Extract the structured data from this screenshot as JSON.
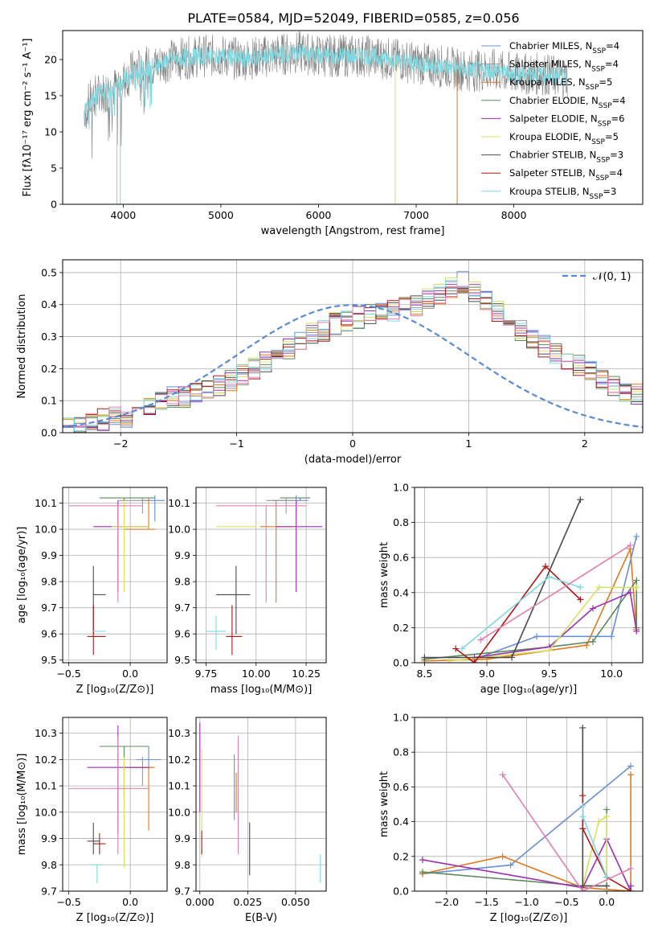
{
  "figure_title": "PLATE=0584, MJD=52049, FIBERID=0585, z=0.056",
  "colors": {
    "models": [
      "#6a8fd8",
      "#9a9a9a",
      "#e07820",
      "#5c8a5c",
      "#9b30b0",
      "#d8e060",
      "#4a4a4a",
      "#b01818",
      "#80d8e0"
    ],
    "top_panel_lines": [
      "#808080",
      "#80d8e0"
    ],
    "hist_pink": "#e080b0",
    "gaussian": "#5a8ad6"
  },
  "chart_data": [
    {
      "id": "spectrum",
      "type": "line",
      "title": "PLATE=0584, MJD=52049, FIBERID=0585, z=0.056",
      "xlabel": "wavelength [Angstrom, rest frame]",
      "ylabel": "Flux [fλ10⁻¹⁷ erg cm⁻² s⁻¹ A⁻¹]",
      "xlim": [
        3380,
        9320
      ],
      "ylim": [
        0,
        24
      ],
      "xticks": [
        4000,
        5000,
        6000,
        7000,
        8000
      ],
      "yticks": [
        0,
        5,
        10,
        15,
        20
      ],
      "grid": false,
      "legend_position": "top-right",
      "legend": [
        "Chabrier MILES, N_SSP=4",
        "Salpeter MILES, N_SSP=4",
        "Kroupa MILES, N_SSP=5",
        "Chabrier ELODIE, N_SSP=4",
        "Salpeter ELODIE, N_SSP=6",
        "Kroupa ELODIE, N_SSP=5",
        "Chabrier STELIB, N_SSP=3",
        "Salpeter STELIB, N_SSP=4",
        "Kroupa STELIB, N_SSP=3"
      ],
      "legend_html": [
        "Chabrier MILES, N<tspan baseline-shift=\"sub\" font-size=\"9\">SSP</tspan>=4",
        "Salpeter MILES, N<tspan baseline-shift=\"sub\" font-size=\"9\">SSP</tspan>=4",
        "Kroupa MILES, N<tspan baseline-shift=\"sub\" font-size=\"9\">SSP</tspan>=5",
        "Chabrier ELODIE, N<tspan baseline-shift=\"sub\" font-size=\"9\">SSP</tspan>=4",
        "Salpeter ELODIE, N<tspan baseline-shift=\"sub\" font-size=\"9\">SSP</tspan>=6",
        "Kroupa ELODIE, N<tspan baseline-shift=\"sub\" font-size=\"9\">SSP</tspan>=5",
        "Chabrier STELIB, N<tspan baseline-shift=\"sub\" font-size=\"9\">SSP</tspan>=3",
        "Salpeter STELIB, N<tspan baseline-shift=\"sub\" font-size=\"9\">SSP</tspan>=4",
        "Kroupa STELIB, N<tspan baseline-shift=\"sub\" font-size=\"9\">SSP</tspan>=3"
      ],
      "continuum": {
        "x": [
          3600,
          3700,
          3800,
          3900,
          4000,
          4100,
          4300,
          4500,
          4800,
          5000,
          5200,
          5500,
          5800,
          6000,
          6300,
          6500,
          6800,
          7000,
          7300,
          7500,
          7800,
          8000,
          8300,
          8500
        ],
        "y": [
          13.0,
          15.0,
          15.5,
          16.0,
          17.0,
          18.5,
          19.0,
          20.0,
          20.5,
          20.5,
          20.0,
          20.5,
          21.0,
          20.5,
          20.5,
          20.5,
          20.0,
          19.5,
          19.0,
          18.5,
          18.5,
          18.0,
          18.0,
          17.5
        ]
      },
      "notable_features": [
        {
          "x": 3935,
          "y": 0.0
        },
        {
          "x": 3970,
          "y": 0.0
        },
        {
          "x": 6785,
          "y": 0.0
        },
        {
          "x": 7420,
          "y": 0.0
        }
      ]
    },
    {
      "id": "residual-histogram",
      "type": "line",
      "xlabel": "(data-model)/error",
      "ylabel": "Normed distribution",
      "xlim": [
        -2.5,
        2.5
      ],
      "ylim": [
        0,
        0.54
      ],
      "xticks": [
        -2,
        -1,
        0,
        1,
        2
      ],
      "yticks": [
        0.0,
        0.1,
        0.2,
        0.3,
        0.4,
        0.5
      ],
      "grid": true,
      "legend_position": "top-right",
      "gaussian_label": "𝒩(0, 1)",
      "bin_width": 0.1,
      "bin_start": -2.5,
      "envelope": [
        0.02,
        0.02,
        0.03,
        0.04,
        0.05,
        0.05,
        0.06,
        0.08,
        0.1,
        0.11,
        0.11,
        0.12,
        0.13,
        0.15,
        0.16,
        0.18,
        0.2,
        0.22,
        0.24,
        0.26,
        0.29,
        0.31,
        0.32,
        0.34,
        0.35,
        0.36,
        0.37,
        0.37,
        0.38,
        0.39,
        0.4,
        0.42,
        0.43,
        0.45,
        0.47,
        0.44,
        0.41,
        0.38,
        0.36,
        0.32,
        0.29,
        0.27,
        0.25,
        0.23,
        0.21,
        0.19,
        0.17,
        0.15,
        0.13,
        0.12,
        0.1,
        0.09,
        0.08,
        0.07,
        0.06,
        0.05,
        0.04,
        0.04,
        0.03,
        0.03,
        0.02,
        0.02,
        0.02
      ]
    },
    {
      "id": "age-vs-metallicity",
      "type": "scatter",
      "xlabel": "Z [log₁₀(Z/Z⊙)]",
      "ylabel": "age  [log₁₀(age/yr)]",
      "xlim": [
        -0.55,
        0.3
      ],
      "ylim": [
        9.49,
        10.16
      ],
      "xticks": [
        -0.5,
        0.0
      ],
      "yticks": [
        9.5,
        9.6,
        9.7,
        9.8,
        9.9,
        10.0,
        10.1
      ],
      "grid": true,
      "points": [
        {
          "x": 0.2,
          "y": 10.11,
          "xerr": [
            0.12,
            0.08
          ],
          "yerr": [
            0.08,
            0.02
          ],
          "c": 0
        },
        {
          "x": 0.1,
          "y": 10.11,
          "xerr": [
            0.2,
            0.05
          ],
          "yerr": [
            0.05,
            0.01
          ],
          "c": 1
        },
        {
          "x": 0.15,
          "y": 10.0,
          "xerr": [
            0.2,
            0.05
          ],
          "yerr": [
            0.0,
            0.12
          ],
          "c": 2
        },
        {
          "x": -0.05,
          "y": 10.12,
          "xerr": [
            0.2,
            0.25
          ],
          "yerr": [
            0.01,
            0.0
          ],
          "c": 3
        },
        {
          "x": -0.1,
          "y": 10.01,
          "xerr": [
            0.2,
            0.25
          ],
          "yerr": [
            0.25,
            0.1
          ],
          "c": 4
        },
        {
          "x": -0.05,
          "y": 10.01,
          "xerr": [
            0.1,
            0.2
          ],
          "yerr": [
            0.25,
            0.1
          ],
          "c": 5
        },
        {
          "x": -0.3,
          "y": 9.75,
          "xerr": [
            0.0,
            0.1
          ],
          "yerr": [
            0.15,
            0.11
          ],
          "c": 6
        },
        {
          "x": -0.3,
          "y": 9.59,
          "xerr": [
            0.05,
            0.1
          ],
          "yerr": [
            0.07,
            0.12
          ],
          "c": 7
        },
        {
          "x": -0.25,
          "y": 9.61,
          "xerr": [
            0.05,
            0.05
          ],
          "yerr": [
            0.0,
            0.0
          ],
          "c": 8
        },
        {
          "x": -0.1,
          "y": 10.09,
          "xerr": [
            0.4,
            0.2
          ],
          "yerr": [
            0.37,
            0.0
          ],
          "c": "pink"
        }
      ]
    },
    {
      "id": "age-vs-mass",
      "type": "scatter",
      "xlabel": "mass [log₁₀(M/M⊙)]",
      "ylabel": "",
      "xlim": [
        9.7,
        10.35
      ],
      "ylim": [
        9.49,
        10.16
      ],
      "xticks": [
        9.75,
        10.0,
        10.25
      ],
      "yticks": [
        9.5,
        9.6,
        9.7,
        9.8,
        9.9,
        10.0,
        10.1
      ],
      "grid": true,
      "points": [
        {
          "x": 10.2,
          "y": 10.11,
          "xerr": [
            0.12,
            0.06
          ],
          "yerr": [
            0.05,
            0.02
          ],
          "c": 0
        },
        {
          "x": 10.15,
          "y": 10.11,
          "xerr": [
            0.1,
            0.06
          ],
          "yerr": [
            0.05,
            0.01
          ],
          "c": 1
        },
        {
          "x": 10.1,
          "y": 10.01,
          "xerr": [
            0.08,
            0.08
          ],
          "yerr": [
            0.29,
            0.1
          ],
          "c": 2
        },
        {
          "x": 10.22,
          "y": 10.12,
          "xerr": [
            0.1,
            0.05
          ],
          "yerr": [
            0.01,
            0.0
          ],
          "c": 3
        },
        {
          "x": 10.2,
          "y": 10.01,
          "xerr": [
            0.1,
            0.13
          ],
          "yerr": [
            0.25,
            0.1
          ],
          "c": 4
        },
        {
          "x": 9.9,
          "y": 10.01,
          "xerr": [
            0.1,
            0.1
          ],
          "yerr": [
            0.0,
            0.0
          ],
          "c": 5
        },
        {
          "x": 9.9,
          "y": 9.75,
          "xerr": [
            0.1,
            0.07
          ],
          "yerr": [
            0.15,
            0.11
          ],
          "c": 6
        },
        {
          "x": 9.88,
          "y": 9.59,
          "xerr": [
            0.03,
            0.05
          ],
          "yerr": [
            0.07,
            0.12
          ],
          "c": 7
        },
        {
          "x": 9.8,
          "y": 9.61,
          "xerr": [
            0.05,
            0.05
          ],
          "yerr": [
            0.07,
            0.06
          ],
          "c": 8
        },
        {
          "x": 10.05,
          "y": 10.09,
          "xerr": [
            0.25,
            0.2
          ],
          "yerr": [
            0.37,
            0.0
          ],
          "c": "pink"
        }
      ]
    },
    {
      "id": "mass-weight-vs-age",
      "type": "line",
      "xlabel": "age  [log₁₀(age/yr)]",
      "ylabel": "mass weight",
      "xlim": [
        8.42,
        10.25
      ],
      "ylim": [
        0,
        1.0
      ],
      "xticks": [
        8.5,
        9.0,
        9.5,
        10.0
      ],
      "yticks": [
        0.0,
        0.2,
        0.4,
        0.6,
        0.8,
        1.0
      ],
      "grid": true,
      "series": [
        {
          "c": 0,
          "x": [
            8.9,
            9.4,
            10.0,
            10.2
          ],
          "y": [
            0.02,
            0.15,
            0.15,
            0.72
          ]
        },
        {
          "c": 2,
          "x": [
            8.5,
            9.0,
            9.8,
            10.15,
            10.2
          ],
          "y": [
            0.01,
            0.02,
            0.1,
            0.65,
            0.19
          ]
        },
        {
          "c": 3,
          "x": [
            8.5,
            9.5,
            9.85,
            10.2,
            10.2
          ],
          "y": [
            0.02,
            0.09,
            0.12,
            0.47,
            0.2
          ]
        },
        {
          "c": 4,
          "x": [
            8.9,
            9.5,
            9.85,
            10.15,
            10.2
          ],
          "y": [
            0.03,
            0.09,
            0.31,
            0.4,
            0.18
          ]
        },
        {
          "c": 5,
          "x": [
            8.7,
            9.5,
            9.9,
            10.2
          ],
          "y": [
            0.01,
            0.07,
            0.43,
            0.43
          ]
        },
        {
          "c": 6,
          "x": [
            8.5,
            9.2,
            9.75
          ],
          "y": [
            0.03,
            0.03,
            0.93
          ]
        },
        {
          "c": 7,
          "x": [
            8.75,
            8.9,
            9.47,
            9.75
          ],
          "y": [
            0.08,
            0.0,
            0.55,
            0.36
          ]
        },
        {
          "c": 8,
          "x": [
            8.8,
            9.5,
            9.75
          ],
          "y": [
            0.08,
            0.49,
            0.43
          ]
        },
        {
          "c": "pink",
          "x": [
            8.95,
            10.15
          ],
          "y": [
            0.13,
            0.67
          ]
        }
      ]
    },
    {
      "id": "mass-vs-metallicity",
      "type": "scatter",
      "xlabel": "Z [log₁₀(Z/Z⊙)]",
      "ylabel": "mass [log₁₀(M/M⊙)]",
      "xlim": [
        -0.55,
        0.3
      ],
      "ylim": [
        9.7,
        10.36
      ],
      "xticks": [
        -0.5,
        0.0
      ],
      "yticks": [
        9.7,
        9.8,
        9.9,
        10.0,
        10.1,
        10.2,
        10.3
      ],
      "grid": true,
      "points": [
        {
          "x": 0.15,
          "y": 10.2,
          "xerr": [
            0.1,
            0.1
          ],
          "yerr": [
            0.05,
            0.05
          ],
          "c": 0
        },
        {
          "x": 0.1,
          "y": 10.17,
          "xerr": [
            0.15,
            0.08
          ],
          "yerr": [
            0.07,
            0.04
          ],
          "c": 1
        },
        {
          "x": 0.15,
          "y": 10.17,
          "xerr": [
            0.15,
            0.05
          ],
          "yerr": [
            0.24,
            0.0
          ],
          "c": 2
        },
        {
          "x": -0.05,
          "y": 10.25,
          "xerr": [
            0.2,
            0.2
          ],
          "yerr": [
            0.2,
            0.0
          ],
          "c": 3
        },
        {
          "x": -0.1,
          "y": 10.17,
          "xerr": [
            0.25,
            0.25
          ],
          "yerr": [
            0.25,
            0.16
          ],
          "c": 4
        },
        {
          "x": -0.05,
          "y": 10.09,
          "xerr": [
            0.1,
            0.15
          ],
          "yerr": [
            0.3,
            0.12
          ],
          "c": 5
        },
        {
          "x": -0.3,
          "y": 9.89,
          "xerr": [
            0.05,
            0.05
          ],
          "yerr": [
            0.05,
            0.07
          ],
          "c": 6
        },
        {
          "x": -0.25,
          "y": 9.88,
          "xerr": [
            0.05,
            0.05
          ],
          "yerr": [
            0.04,
            0.04
          ],
          "c": 7
        },
        {
          "x": -0.27,
          "y": 9.8,
          "xerr": [
            0.05,
            0.05
          ],
          "yerr": [
            0.07,
            0.0
          ],
          "c": 8
        },
        {
          "x": -0.1,
          "y": 10.09,
          "xerr": [
            0.4,
            0.25
          ],
          "yerr": [
            0.25,
            0.2
          ],
          "c": "pink"
        }
      ]
    },
    {
      "id": "mass-vs-extinction",
      "type": "scatter",
      "xlabel": "E(B-V)",
      "ylabel": "",
      "xlim": [
        -0.002,
        0.066
      ],
      "ylim": [
        9.7,
        10.36
      ],
      "xticks": [
        0.0,
        0.025,
        0.05
      ],
      "yticks": [
        9.7,
        9.8,
        9.9,
        10.0,
        10.1,
        10.2,
        10.3
      ],
      "grid": true,
      "points": [
        {
          "x": 0.018,
          "y": 10.17,
          "xerr": [
            0,
            0
          ],
          "yerr": [
            0.2,
            0.05
          ],
          "c": 0
        },
        {
          "x": 0.019,
          "y": 10.1,
          "xerr": [
            0,
            0
          ],
          "yerr": [
            0.1,
            0.05
          ],
          "c": 2
        },
        {
          "x": 0.0,
          "y": 10.1,
          "xerr": [
            0,
            0
          ],
          "yerr": [
            0.1,
            0.24
          ],
          "c": 4
        },
        {
          "x": 0.001,
          "y": 10.06,
          "xerr": [
            0,
            0
          ],
          "yerr": [
            0.23,
            0.18
          ],
          "c": 5
        },
        {
          "x": 0.026,
          "y": 9.89,
          "xerr": [
            0,
            0
          ],
          "yerr": [
            0.13,
            0.07
          ],
          "c": 6
        },
        {
          "x": 0.001,
          "y": 9.88,
          "xerr": [
            0,
            0
          ],
          "yerr": [
            0.04,
            0.05
          ],
          "c": 7
        },
        {
          "x": 0.063,
          "y": 9.8,
          "xerr": [
            0,
            0
          ],
          "yerr": [
            0.07,
            0.04
          ],
          "c": 8
        },
        {
          "x": 0.02,
          "y": 10.09,
          "xerr": [
            0,
            0
          ],
          "yerr": [
            0.25,
            0.2
          ],
          "c": "pink"
        }
      ]
    },
    {
      "id": "mass-weight-vs-metallicity",
      "type": "line",
      "xlabel": "Z [log₁₀(Z/Z⊙)]",
      "ylabel": "mass weight",
      "xlim": [
        -2.4,
        0.45
      ],
      "ylim": [
        0,
        1.0
      ],
      "xticks": [
        -2.0,
        -1.5,
        -1.0,
        -0.5,
        0.0
      ],
      "yticks": [
        0.0,
        0.2,
        0.4,
        0.6,
        0.8,
        1.0
      ],
      "grid": true,
      "series": [
        {
          "c": 0,
          "x": [
            -2.3,
            -1.2,
            0.3
          ],
          "y": [
            0.1,
            0.15,
            0.72
          ]
        },
        {
          "c": 2,
          "x": [
            -2.3,
            -1.3,
            -0.3,
            0.3,
            0.3
          ],
          "y": [
            0.1,
            0.2,
            0.02,
            0.0,
            0.67
          ]
        },
        {
          "c": 3,
          "x": [
            -2.3,
            -0.3,
            0.0,
            0.0
          ],
          "y": [
            0.11,
            0.03,
            0.03,
            0.47
          ]
        },
        {
          "c": 4,
          "x": [
            -2.3,
            -0.3,
            0.0,
            0.3,
            0.3
          ],
          "y": [
            0.18,
            0.02,
            0.3,
            0.0,
            0.03
          ]
        },
        {
          "c": 5,
          "x": [
            -0.3,
            -0.1,
            0.0,
            0.0
          ],
          "y": [
            0.03,
            0.4,
            0.43,
            0.0
          ]
        },
        {
          "c": 6,
          "x": [
            -0.3,
            -0.3,
            0.0
          ],
          "y": [
            0.94,
            0.03,
            0.03
          ]
        },
        {
          "c": 7,
          "x": [
            -0.3,
            -0.3,
            0.0,
            0.3
          ],
          "y": [
            0.55,
            0.36,
            0.08,
            0.0
          ]
        },
        {
          "c": 8,
          "x": [
            -0.3,
            -0.3,
            0.0
          ],
          "y": [
            0.49,
            0.43,
            0.08
          ]
        },
        {
          "c": "pink",
          "x": [
            -1.3,
            -0.3,
            0.3
          ],
          "y": [
            0.67,
            0.0,
            0.13
          ]
        }
      ]
    }
  ]
}
